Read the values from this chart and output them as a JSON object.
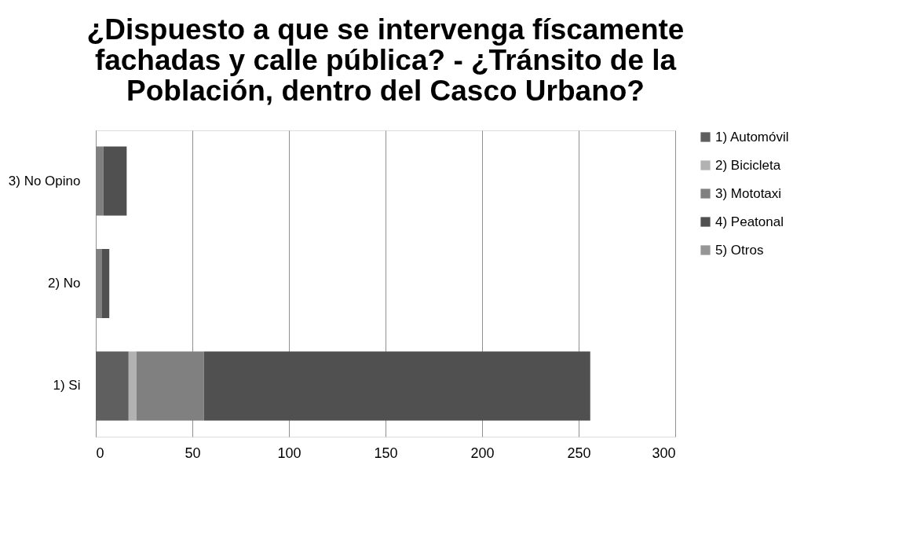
{
  "chart_data": {
    "type": "bar",
    "orientation": "horizontal",
    "stacked": true,
    "title": "¿Dispuesto a que se intervenga físcamente fachadas y calle pública? - ¿Tránsito de la Población, dentro del Casco Urbano?",
    "categories": [
      "3) No Opino",
      "2) No",
      "1) Si"
    ],
    "series": [
      {
        "name": "1) Automóvil",
        "color": "#5f5f5f",
        "values": [
          0,
          0,
          17
        ]
      },
      {
        "name": "2) Bicicleta",
        "color": "#b2b2b2",
        "values": [
          0,
          0,
          4
        ]
      },
      {
        "name": "3) Mototaxi",
        "color": "#808080",
        "values": [
          4,
          3,
          35
        ]
      },
      {
        "name": "4) Peatonal",
        "color": "#505050",
        "values": [
          12,
          4,
          200
        ]
      },
      {
        "name": "5) Otros",
        "color": "#969696",
        "values": [
          0,
          0,
          0
        ]
      }
    ],
    "xlim": [
      0,
      300
    ],
    "xticks": [
      0,
      50,
      100,
      150,
      200,
      250,
      300
    ],
    "grid": "x",
    "legend": "right"
  }
}
